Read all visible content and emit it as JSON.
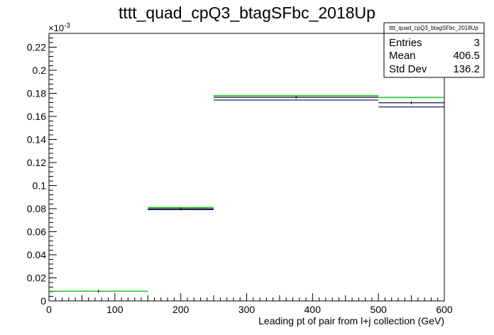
{
  "chart_data": {
    "type": "histogram",
    "title": "tttt_quad_cpQ3_btagSFbc_2018Up",
    "xlabel": "Leading pt of pair from l+j collection (GeV)",
    "ylabel": "",
    "y_exponent_label": "×10",
    "y_exponent_power": "-3",
    "xlim": [
      0,
      600
    ],
    "ylim": [
      0,
      0.232
    ],
    "x_ticks": [
      0,
      100,
      200,
      300,
      400,
      500,
      600
    ],
    "x_tick_labels": [
      "0",
      "100",
      "200",
      "300",
      "400",
      "500",
      "600"
    ],
    "y_ticks": [
      0,
      0.02,
      0.04,
      0.06,
      0.08,
      0.1,
      0.12,
      0.14,
      0.16,
      0.18,
      0.2,
      0.22
    ],
    "y_tick_labels": [
      "0",
      "0.02",
      "0.04",
      "0.06",
      "0.08",
      "0.1",
      "0.12",
      "0.14",
      "0.16",
      "0.18",
      "0.2",
      "0.22"
    ],
    "bins": [
      {
        "xlow": 0,
        "xhigh": 150
      },
      {
        "xlow": 150,
        "xhigh": 250
      },
      {
        "xlow": 250,
        "xhigh": 500
      },
      {
        "xlow": 500,
        "xhigh": 600
      }
    ],
    "series": [
      {
        "color": "#000000",
        "values": [
          0.0085,
          0.0798,
          0.1765,
          0.1718
        ]
      },
      {
        "color": "#00008b",
        "values": [
          0.0085,
          0.0792,
          0.1742,
          0.1682
        ]
      },
      {
        "color": "#008000",
        "values": [
          0.0085,
          0.0808,
          0.1778,
          0.1765
        ]
      },
      {
        "color": "#33dd33",
        "values": [
          0.0085,
          0.0812,
          0.1782,
          0.1762
        ]
      }
    ],
    "stats": {
      "title": "tttt_quad_cpQ3_btagSFbc_2018Up",
      "rows": [
        {
          "label": "Entries",
          "value": "3"
        },
        {
          "label": "Mean",
          "value": "406.5"
        },
        {
          "label": "Std Dev",
          "value": "136.2"
        }
      ]
    }
  }
}
